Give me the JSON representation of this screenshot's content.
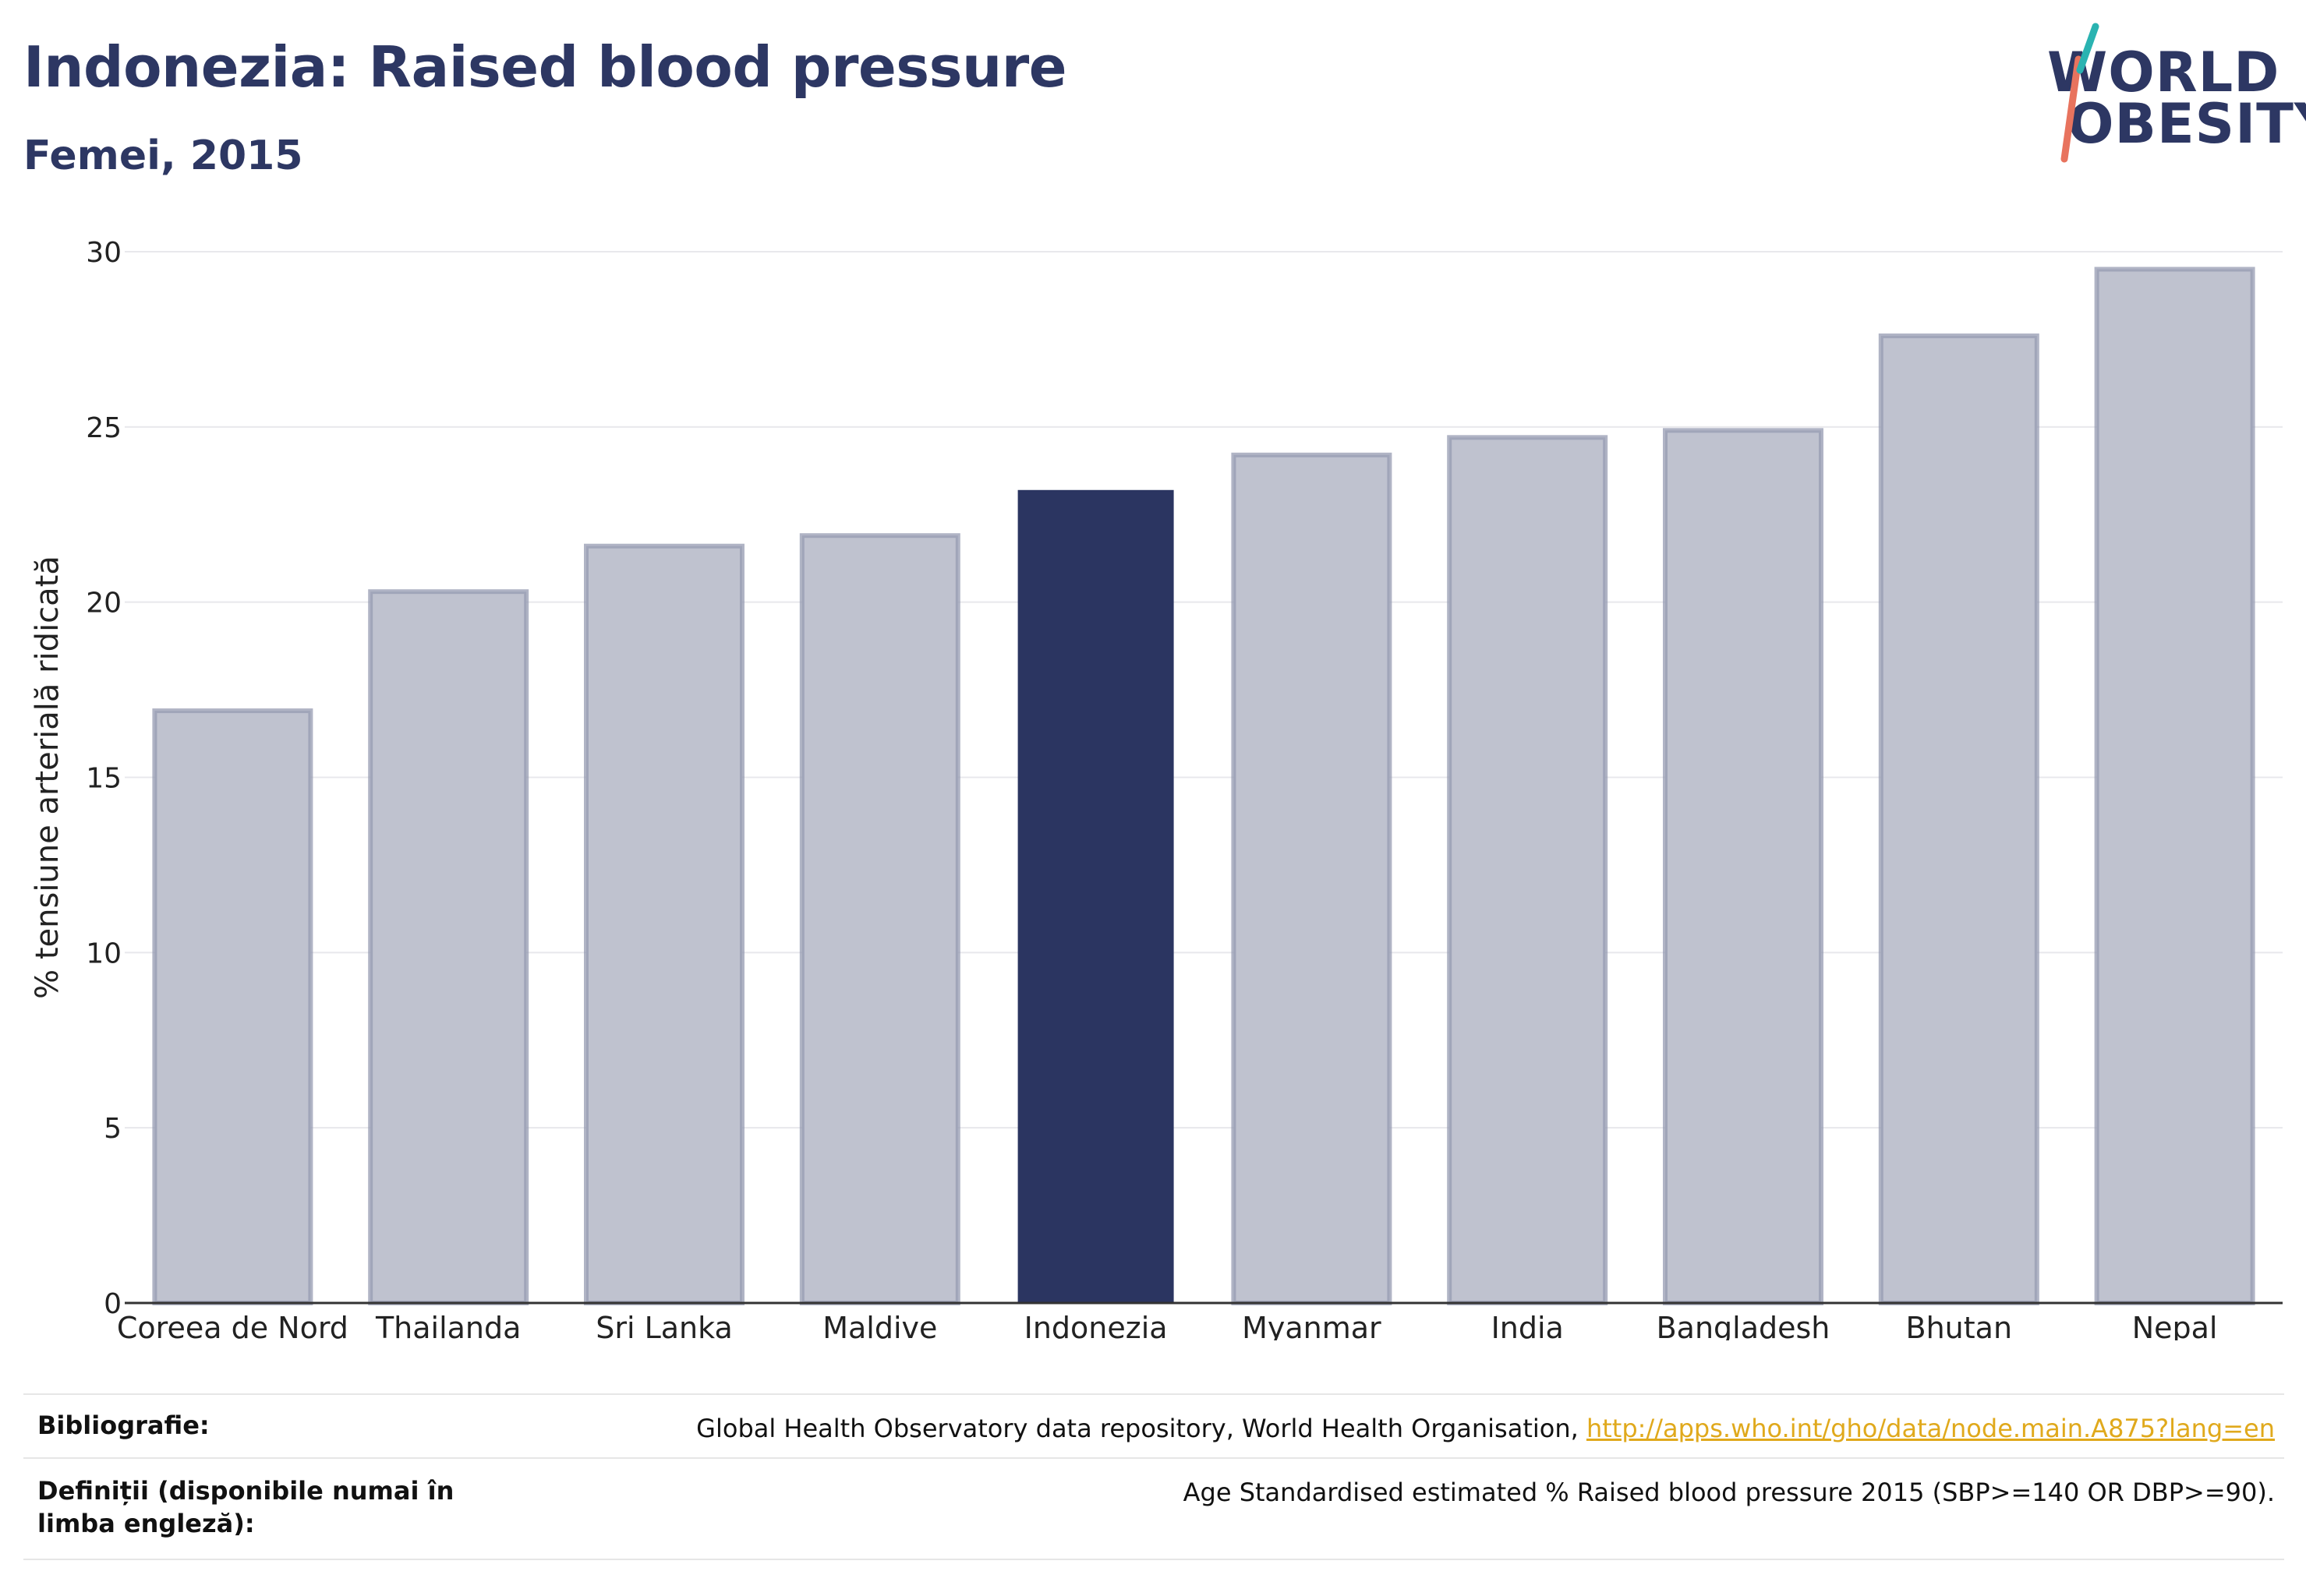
{
  "header": {
    "title": "Indonezia: Raised blood pressure",
    "subtitle": "Femei, 2015"
  },
  "logo": {
    "line1": "WORLD",
    "line2": "OBESITY",
    "colors": {
      "navy": "#2d3763",
      "teal": "#2ab3b1",
      "coral": "#e8735e"
    }
  },
  "chart_data": {
    "type": "bar",
    "categories": [
      "Coreea de Nord",
      "Thailanda",
      "Sri Lanka",
      "Maldive",
      "Indonezia",
      "Myanmar",
      "India",
      "Bangladesh",
      "Bhutan",
      "Nepal"
    ],
    "values": [
      16.9,
      20.3,
      21.6,
      21.9,
      23.2,
      24.2,
      24.7,
      24.9,
      27.6,
      29.5
    ],
    "highlight": "Indonezia",
    "ylabel": "% tensiune arterială ridicată",
    "ylim": [
      0,
      30
    ],
    "yticks": [
      0,
      5,
      10,
      15,
      20,
      25,
      30
    ],
    "grid": true,
    "colors": {
      "bar": "#bfc2cf",
      "bar_edge": "#959bb2",
      "highlight": "#2b3561"
    }
  },
  "footer": {
    "bibliography_label": "Bibliografie:",
    "bibliography_text": "Global Health Observatory data repository, World Health Organisation, ",
    "bibliography_link": "http://apps.who.int/gho/data/node.main.A875?lang=en",
    "definitions_label": "Definiții (disponibile numai în limba engleză):",
    "definitions_text": "Age Standardised estimated % Raised blood pressure 2015 (SBP>=140 OR DBP>=90)."
  }
}
